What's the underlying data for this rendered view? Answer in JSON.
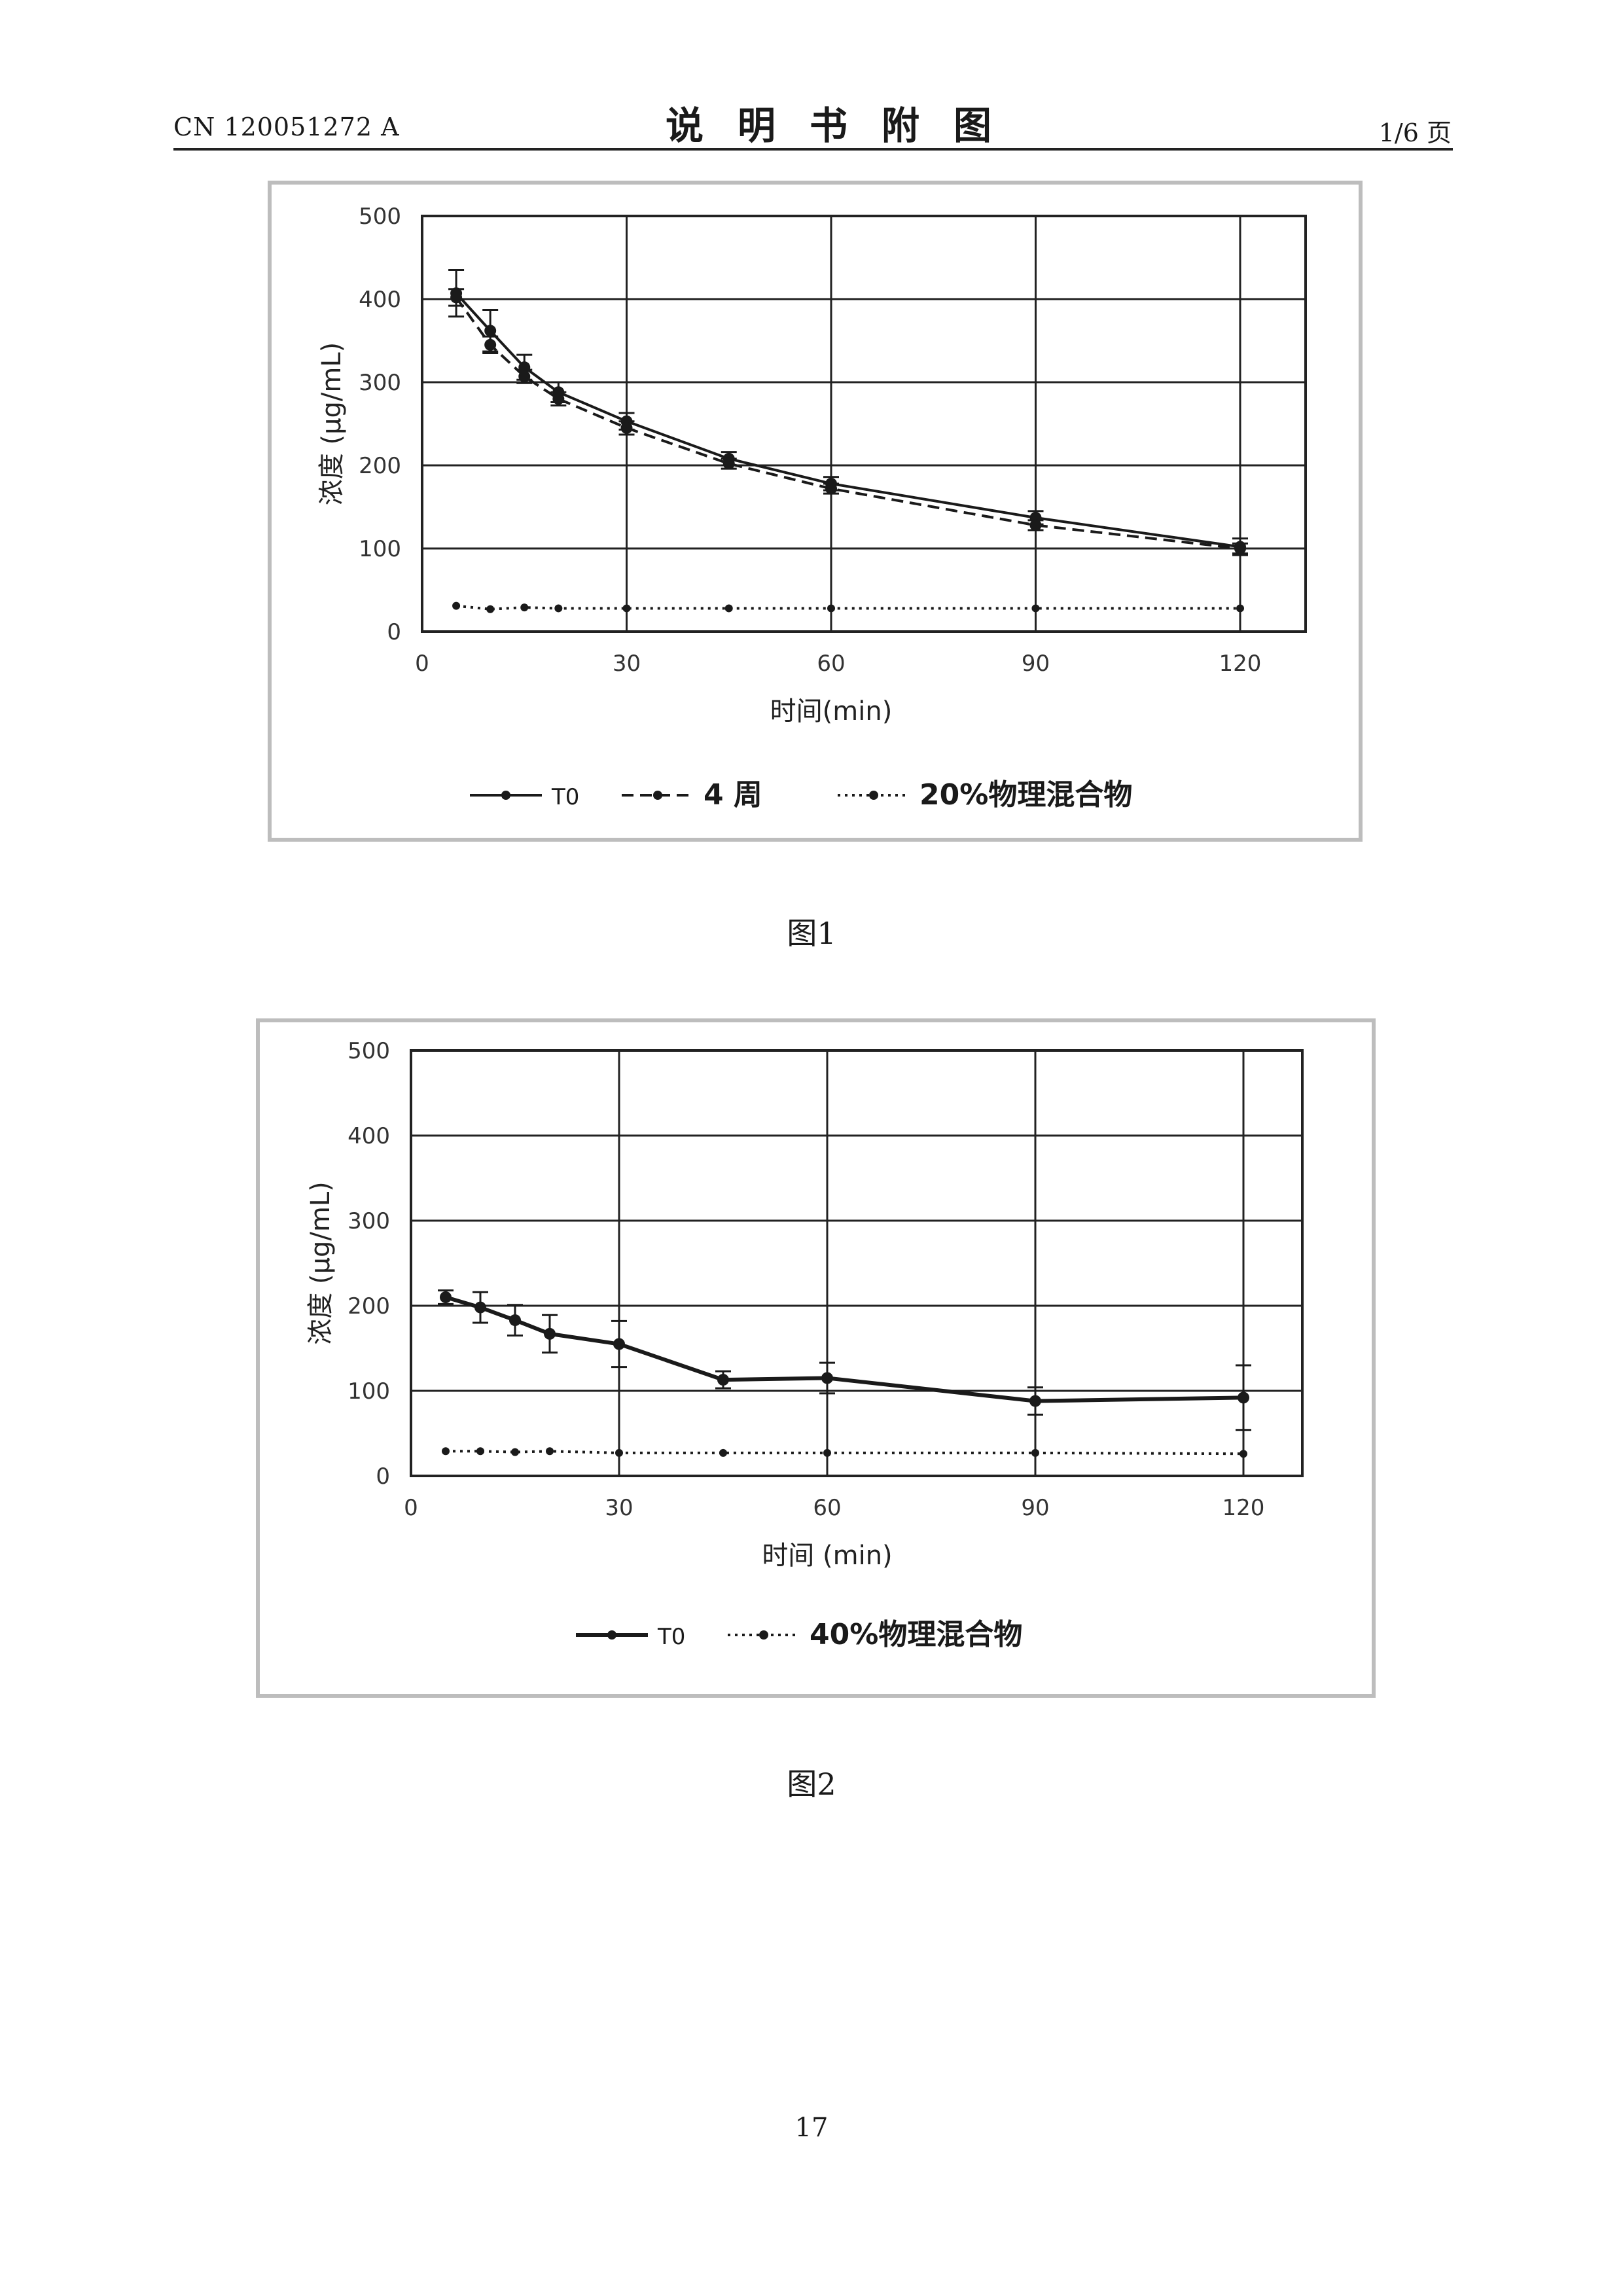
{
  "header": {
    "doc_number": "CN 120051272 A",
    "title": "说明书附图",
    "page_indicator": "1/6 页"
  },
  "captions": {
    "fig1": "图1",
    "fig2": "图2"
  },
  "page_number": "17",
  "chart_data": [
    {
      "type": "line",
      "xlabel": "时间(min)",
      "ylabel": "浓度 (µg/mL)",
      "xlim": [
        0,
        120
      ],
      "ylim": [
        0,
        500
      ],
      "xticks": [
        0,
        30,
        60,
        90,
        120
      ],
      "yticks": [
        0,
        100,
        200,
        300,
        400,
        500
      ],
      "grid": true,
      "legend_position": "bottom",
      "series": [
        {
          "name": "T0",
          "style": "solid",
          "x": [
            5,
            10,
            15,
            20,
            30,
            45,
            60,
            90,
            120
          ],
          "y": [
            407,
            362,
            318,
            288,
            253,
            208,
            178,
            137,
            102
          ],
          "err": [
            28,
            25,
            15,
            12,
            10,
            8,
            8,
            8,
            10
          ]
        },
        {
          "name": "4 周",
          "style": "dashed",
          "x": [
            5,
            10,
            15,
            20,
            30,
            45,
            60,
            90,
            120
          ],
          "y": [
            402,
            345,
            307,
            280,
            245,
            202,
            172,
            128,
            100
          ],
          "err": [
            10,
            10,
            8,
            8,
            8,
            6,
            6,
            6,
            6
          ]
        },
        {
          "name": "20%物理混合物",
          "style": "dotted",
          "x": [
            5,
            10,
            15,
            20,
            30,
            45,
            60,
            90,
            120
          ],
          "y": [
            31,
            27,
            29,
            28,
            28,
            28,
            28,
            28,
            28
          ],
          "err": [
            0,
            0,
            0,
            0,
            0,
            0,
            0,
            0,
            0
          ]
        }
      ]
    },
    {
      "type": "line",
      "xlabel": "时间 (min)",
      "ylabel": "浓度 (µg/mL)",
      "xlim": [
        0,
        120
      ],
      "ylim": [
        0,
        500
      ],
      "xticks": [
        0,
        30,
        60,
        90,
        120
      ],
      "yticks": [
        0,
        100,
        200,
        300,
        400,
        500
      ],
      "grid": true,
      "legend_position": "bottom",
      "series": [
        {
          "name": "T0",
          "style": "solid",
          "x": [
            5,
            10,
            15,
            20,
            30,
            45,
            60,
            90,
            120
          ],
          "y": [
            210,
            198,
            183,
            167,
            155,
            113,
            115,
            88,
            92
          ],
          "err": [
            8,
            18,
            18,
            22,
            27,
            10,
            18,
            16,
            38
          ]
        },
        {
          "name": "40%物理混合物",
          "style": "dotted",
          "x": [
            5,
            10,
            15,
            20,
            30,
            45,
            60,
            90,
            120
          ],
          "y": [
            29,
            29,
            28,
            29,
            27,
            27,
            27,
            27,
            26
          ],
          "err": [
            0,
            0,
            0,
            0,
            0,
            0,
            0,
            0,
            0
          ]
        }
      ]
    }
  ]
}
